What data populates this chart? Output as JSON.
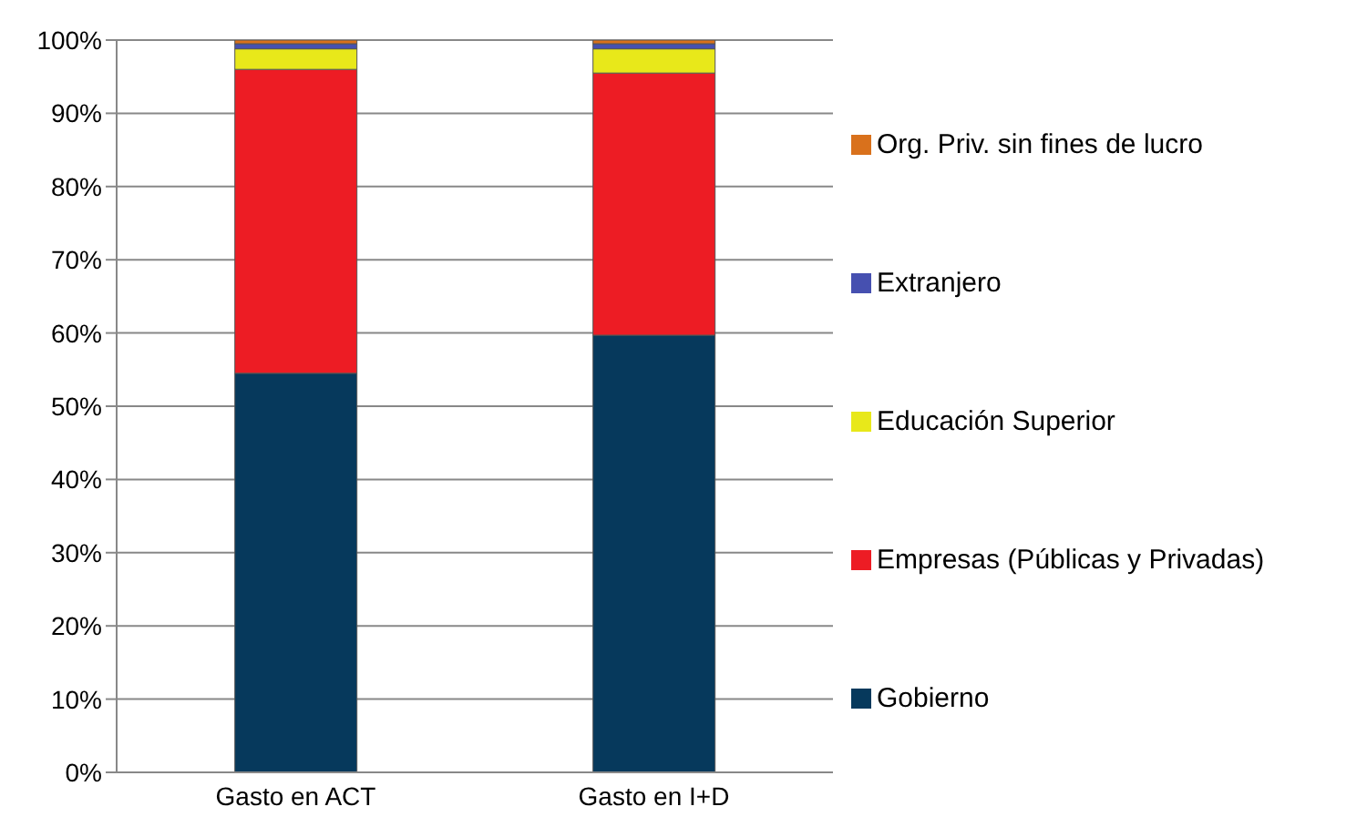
{
  "chart_data": {
    "type": "bar",
    "stacked": true,
    "categories": [
      "Gasto en ACT",
      "Gasto en I+D"
    ],
    "series": [
      {
        "name": "Gobierno",
        "color": "#06395c",
        "values": [
          54.5,
          59.7
        ]
      },
      {
        "name": "Empresas (Públicas y Privadas)",
        "color": "#ed1c24",
        "values": [
          41.5,
          35.8
        ]
      },
      {
        "name": "Educación Superior",
        "color": "#e8e81a",
        "values": [
          2.8,
          3.3
        ]
      },
      {
        "name": "Extranjero",
        "color": "#4650b0",
        "values": [
          0.7,
          0.7
        ]
      },
      {
        "name": "Org. Priv. sin fines de lucro",
        "color": "#d9711c",
        "values": [
          0.5,
          0.5
        ]
      }
    ],
    "ylim": [
      0,
      100
    ],
    "yticks": [
      {
        "value": 0,
        "label": "0%"
      },
      {
        "value": 10,
        "label": "10%"
      },
      {
        "value": 20,
        "label": "20%"
      },
      {
        "value": 30,
        "label": "30%"
      },
      {
        "value": 40,
        "label": "40%"
      },
      {
        "value": 50,
        "label": "50%"
      },
      {
        "value": 60,
        "label": "60%"
      },
      {
        "value": 70,
        "label": "70%"
      },
      {
        "value": 80,
        "label": "80%"
      },
      {
        "value": 90,
        "label": "90%"
      },
      {
        "value": 100,
        "label": "100%"
      }
    ],
    "grid": "y",
    "legend": "right"
  }
}
